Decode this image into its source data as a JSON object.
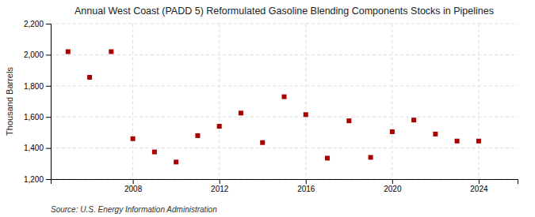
{
  "chart_data": {
    "type": "scatter",
    "title": "Annual West Coast (PADD 5) Reformulated Gasoline Blending Components Stocks in Pipelines",
    "y_label": "Thousand Barrels",
    "annotations": [
      "Source: U.S. Energy Information Administration"
    ],
    "x": [
      2005,
      2006,
      2007,
      2008,
      2009,
      2010,
      2011,
      2012,
      2013,
      2014,
      2015,
      2016,
      2017,
      2018,
      2019,
      2020,
      2021,
      2022,
      2023,
      2024
    ],
    "values": [
      2020,
      1855,
      2020,
      1460,
      1375,
      1310,
      1480,
      1540,
      1625,
      1435,
      1730,
      1615,
      1335,
      1575,
      1340,
      1505,
      1580,
      1490,
      1445,
      1445
    ],
    "color": "#aa0000",
    "marker": "square",
    "xlim": [
      2004.2,
      2025.8
    ],
    "xticks": [
      2008,
      2012,
      2016,
      2020,
      2024
    ],
    "ylim": [
      1200,
      2200
    ],
    "yticks": [
      {
        "value": 1200,
        "label": "1,200"
      },
      {
        "value": 1400,
        "label": "1,400"
      },
      {
        "value": 1600,
        "label": "1,600"
      },
      {
        "value": 1800,
        "label": "1,800"
      },
      {
        "value": 2000,
        "label": "2,000"
      },
      {
        "value": 2200,
        "label": "2,200"
      }
    ],
    "grid": true
  }
}
